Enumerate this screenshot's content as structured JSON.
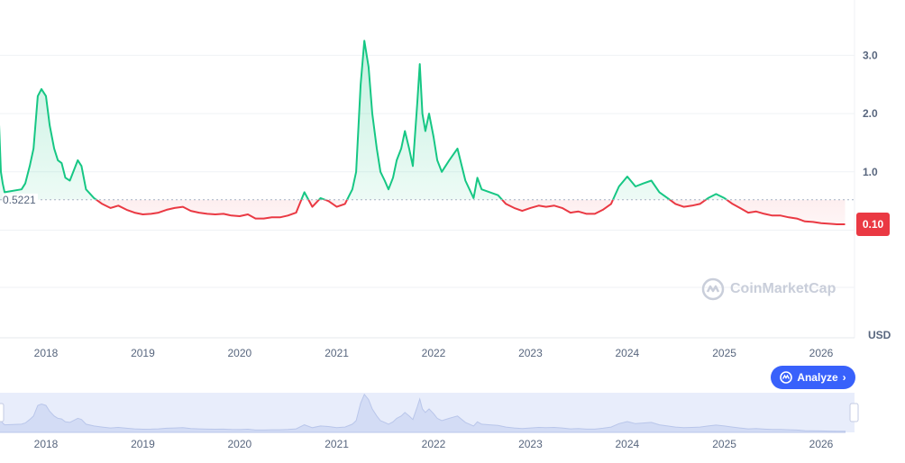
{
  "chart_data": {
    "type": "area",
    "y_unit": "USD",
    "y_ticks": [
      "3.0",
      "2.0",
      "1.0"
    ],
    "baseline_value": 0.5221,
    "baseline_label": "0.5221",
    "current_price_label": "0.10",
    "x_ticks": [
      "2018",
      "2019",
      "2020",
      "2021",
      "2022",
      "2023",
      "2024",
      "2025",
      "2026"
    ],
    "colors": {
      "above": "#16c784",
      "below": "#ea3943",
      "grid": "#eff2f5",
      "navigator": "#e8edfb"
    },
    "series": [
      {
        "points": [
          [
            "2017-07-01",
            0.7
          ],
          [
            "2017-07-08",
            1.85
          ],
          [
            "2017-07-15",
            1.0
          ],
          [
            "2017-07-22",
            0.8
          ],
          [
            "2017-07-29",
            0.65
          ],
          [
            "2017-10-01",
            0.7
          ],
          [
            "2017-10-15",
            0.8
          ],
          [
            "2017-11-01",
            1.1
          ],
          [
            "2017-11-15",
            1.4
          ],
          [
            "2017-12-01",
            2.3
          ],
          [
            "2017-12-15",
            2.42
          ],
          [
            "2018-01-01",
            2.3
          ],
          [
            "2018-01-15",
            1.8
          ],
          [
            "2018-02-01",
            1.4
          ],
          [
            "2018-02-15",
            1.2
          ],
          [
            "2018-03-01",
            1.15
          ],
          [
            "2018-03-15",
            0.9
          ],
          [
            "2018-04-01",
            0.85
          ],
          [
            "2018-05-01",
            1.2
          ],
          [
            "2018-05-15",
            1.1
          ],
          [
            "2018-06-01",
            0.7
          ],
          [
            "2018-07-01",
            0.55
          ],
          [
            "2018-08-01",
            0.45
          ],
          [
            "2018-09-01",
            0.38
          ],
          [
            "2018-10-01",
            0.42
          ],
          [
            "2018-11-01",
            0.35
          ],
          [
            "2018-12-01",
            0.3
          ],
          [
            "2019-01-01",
            0.27
          ],
          [
            "2019-02-01",
            0.28
          ],
          [
            "2019-03-01",
            0.3
          ],
          [
            "2019-04-01",
            0.35
          ],
          [
            "2019-05-01",
            0.38
          ],
          [
            "2019-06-01",
            0.4
          ],
          [
            "2019-07-01",
            0.33
          ],
          [
            "2019-08-01",
            0.3
          ],
          [
            "2019-09-01",
            0.28
          ],
          [
            "2019-10-01",
            0.27
          ],
          [
            "2019-11-01",
            0.28
          ],
          [
            "2019-12-01",
            0.25
          ],
          [
            "2020-01-01",
            0.24
          ],
          [
            "2020-02-01",
            0.27
          ],
          [
            "2020-03-01",
            0.2
          ],
          [
            "2020-04-01",
            0.2
          ],
          [
            "2020-05-01",
            0.22
          ],
          [
            "2020-06-01",
            0.22
          ],
          [
            "2020-07-01",
            0.25
          ],
          [
            "2020-08-01",
            0.3
          ],
          [
            "2020-09-01",
            0.65
          ],
          [
            "2020-10-01",
            0.4
          ],
          [
            "2020-11-01",
            0.55
          ],
          [
            "2020-12-01",
            0.5
          ],
          [
            "2021-01-01",
            0.4
          ],
          [
            "2021-02-01",
            0.45
          ],
          [
            "2021-03-01",
            0.7
          ],
          [
            "2021-03-15",
            1.0
          ],
          [
            "2021-04-01",
            2.5
          ],
          [
            "2021-04-15",
            3.25
          ],
          [
            "2021-05-01",
            2.8
          ],
          [
            "2021-05-15",
            2.0
          ],
          [
            "2021-06-01",
            1.4
          ],
          [
            "2021-06-15",
            1.0
          ],
          [
            "2021-07-01",
            0.85
          ],
          [
            "2021-07-15",
            0.7
          ],
          [
            "2021-08-01",
            0.9
          ],
          [
            "2021-08-15",
            1.2
          ],
          [
            "2021-09-01",
            1.4
          ],
          [
            "2021-09-15",
            1.7
          ],
          [
            "2021-10-01",
            1.4
          ],
          [
            "2021-10-15",
            1.1
          ],
          [
            "2021-11-01",
            2.2
          ],
          [
            "2021-11-10",
            2.85
          ],
          [
            "2021-11-20",
            2.0
          ],
          [
            "2021-12-01",
            1.7
          ],
          [
            "2021-12-15",
            2.0
          ],
          [
            "2022-01-01",
            1.6
          ],
          [
            "2022-01-15",
            1.2
          ],
          [
            "2022-02-01",
            1.0
          ],
          [
            "2022-03-01",
            1.2
          ],
          [
            "2022-04-01",
            1.4
          ],
          [
            "2022-05-01",
            0.85
          ],
          [
            "2022-06-01",
            0.55
          ],
          [
            "2022-06-15",
            0.9
          ],
          [
            "2022-07-01",
            0.7
          ],
          [
            "2022-08-01",
            0.65
          ],
          [
            "2022-09-01",
            0.6
          ],
          [
            "2022-10-01",
            0.45
          ],
          [
            "2022-11-01",
            0.38
          ],
          [
            "2022-12-01",
            0.33
          ],
          [
            "2023-01-01",
            0.38
          ],
          [
            "2023-02-01",
            0.42
          ],
          [
            "2023-03-01",
            0.4
          ],
          [
            "2023-04-01",
            0.42
          ],
          [
            "2023-05-01",
            0.38
          ],
          [
            "2023-06-01",
            0.3
          ],
          [
            "2023-07-01",
            0.32
          ],
          [
            "2023-08-01",
            0.28
          ],
          [
            "2023-09-01",
            0.28
          ],
          [
            "2023-10-01",
            0.35
          ],
          [
            "2023-11-01",
            0.45
          ],
          [
            "2023-12-01",
            0.75
          ],
          [
            "2024-01-01",
            0.92
          ],
          [
            "2024-02-01",
            0.75
          ],
          [
            "2024-03-01",
            0.8
          ],
          [
            "2024-04-01",
            0.85
          ],
          [
            "2024-05-01",
            0.65
          ],
          [
            "2024-06-01",
            0.55
          ],
          [
            "2024-07-01",
            0.45
          ],
          [
            "2024-08-01",
            0.4
          ],
          [
            "2024-09-01",
            0.42
          ],
          [
            "2024-10-01",
            0.45
          ],
          [
            "2024-11-01",
            0.55
          ],
          [
            "2024-12-01",
            0.62
          ],
          [
            "2025-01-01",
            0.55
          ],
          [
            "2025-02-01",
            0.45
          ],
          [
            "2025-03-01",
            0.38
          ],
          [
            "2025-04-01",
            0.3
          ],
          [
            "2025-05-01",
            0.32
          ],
          [
            "2025-06-01",
            0.28
          ],
          [
            "2025-07-01",
            0.25
          ],
          [
            "2025-08-01",
            0.25
          ],
          [
            "2025-09-01",
            0.22
          ],
          [
            "2025-10-01",
            0.2
          ],
          [
            "2025-11-01",
            0.15
          ],
          [
            "2025-12-01",
            0.14
          ],
          [
            "2026-01-01",
            0.12
          ],
          [
            "2026-02-01",
            0.11
          ],
          [
            "2026-03-01",
            0.1
          ],
          [
            "2026-04-01",
            0.1
          ]
        ]
      }
    ]
  },
  "axis_unit_label": "USD",
  "watermark_text": "CoinMarketCap",
  "analyze_button": {
    "label": "Analyze"
  }
}
